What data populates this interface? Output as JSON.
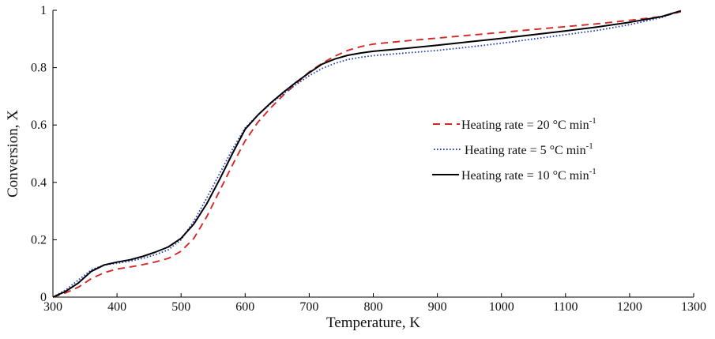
{
  "chart_data": {
    "type": "line",
    "xlabel": "Temperature, K",
    "ylabel": "Conversion, X",
    "xlim": [
      300,
      1300
    ],
    "ylim": [
      0,
      1
    ],
    "xticks": [
      "300",
      "400",
      "500",
      "600",
      "700",
      "800",
      "900",
      "1000",
      "1100",
      "1200",
      "1300"
    ],
    "yticks": [
      "0",
      "0.2",
      "0.4",
      "0.6",
      "0.8",
      "1"
    ],
    "grid": false,
    "legend_position": "center-right",
    "series": [
      {
        "name": "Heating rate = 20 °C min",
        "superscript": "-1",
        "color": "#d62728",
        "style": "dashed",
        "x": [
          300,
          320,
          340,
          360,
          380,
          400,
          420,
          440,
          460,
          480,
          500,
          520,
          540,
          560,
          580,
          600,
          620,
          640,
          660,
          680,
          700,
          720,
          740,
          760,
          780,
          800,
          850,
          900,
          950,
          1000,
          1050,
          1100,
          1150,
          1200,
          1250,
          1280
        ],
        "y": [
          0,
          0.015,
          0.035,
          0.065,
          0.085,
          0.098,
          0.105,
          0.113,
          0.123,
          0.135,
          0.16,
          0.205,
          0.28,
          0.37,
          0.46,
          0.545,
          0.61,
          0.66,
          0.705,
          0.745,
          0.785,
          0.815,
          0.84,
          0.86,
          0.873,
          0.882,
          0.893,
          0.903,
          0.913,
          0.923,
          0.933,
          0.943,
          0.953,
          0.965,
          0.978,
          0.995
        ]
      },
      {
        "name": "Heating rate = 5 °C min",
        "superscript": "-1",
        "color": "#1f3fbf",
        "style": "dotted",
        "x": [
          300,
          320,
          340,
          360,
          380,
          400,
          420,
          440,
          460,
          480,
          500,
          520,
          540,
          560,
          580,
          600,
          620,
          640,
          660,
          680,
          700,
          720,
          740,
          760,
          780,
          800,
          850,
          900,
          950,
          1000,
          1050,
          1100,
          1150,
          1200,
          1250,
          1280
        ],
        "y": [
          0,
          0.025,
          0.06,
          0.095,
          0.112,
          0.118,
          0.125,
          0.135,
          0.148,
          0.165,
          0.2,
          0.265,
          0.345,
          0.43,
          0.515,
          0.59,
          0.635,
          0.675,
          0.71,
          0.742,
          0.772,
          0.797,
          0.815,
          0.828,
          0.836,
          0.842,
          0.851,
          0.86,
          0.872,
          0.885,
          0.9,
          0.915,
          0.93,
          0.95,
          0.975,
          0.998
        ]
      },
      {
        "name": "Heating rate = 10 °C min",
        "superscript": "-1",
        "color": "#000000",
        "style": "solid",
        "x": [
          300,
          320,
          340,
          360,
          380,
          400,
          420,
          440,
          460,
          480,
          500,
          520,
          540,
          560,
          580,
          600,
          620,
          640,
          660,
          680,
          700,
          720,
          740,
          760,
          780,
          800,
          850,
          900,
          950,
          1000,
          1050,
          1100,
          1150,
          1200,
          1250,
          1280
        ],
        "y": [
          0,
          0.02,
          0.05,
          0.09,
          0.112,
          0.122,
          0.13,
          0.142,
          0.157,
          0.175,
          0.205,
          0.255,
          0.325,
          0.41,
          0.5,
          0.585,
          0.635,
          0.677,
          0.715,
          0.75,
          0.782,
          0.812,
          0.83,
          0.843,
          0.851,
          0.857,
          0.867,
          0.878,
          0.89,
          0.902,
          0.915,
          0.928,
          0.942,
          0.958,
          0.978,
          0.998
        ]
      }
    ]
  }
}
